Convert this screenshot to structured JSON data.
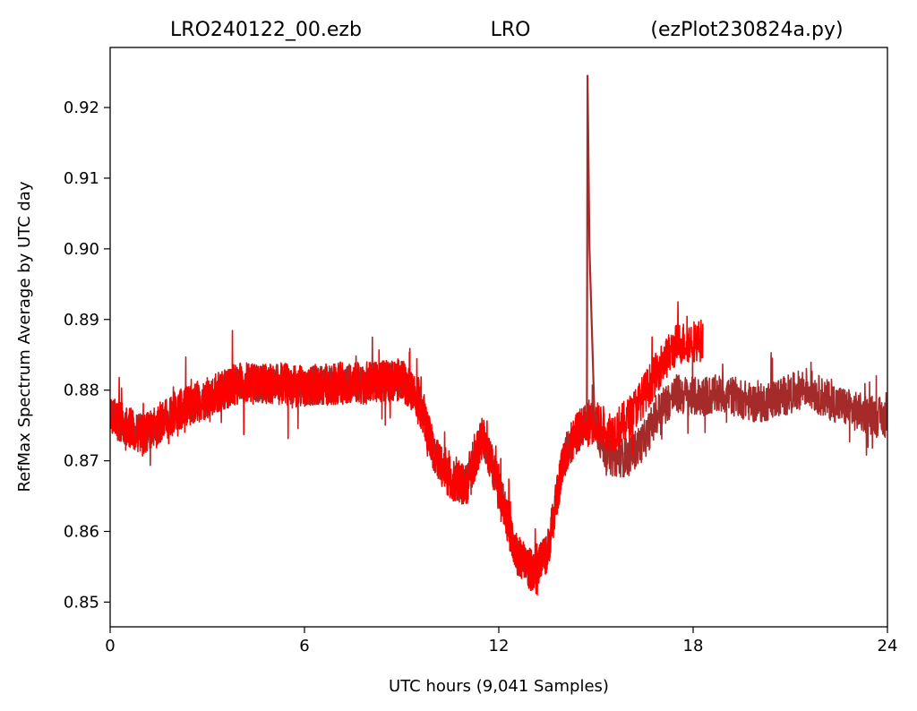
{
  "chart_data": {
    "type": "line",
    "title_left": "LRO240122_00.ezb",
    "title_center": "LRO",
    "title_right": "(ezPlot230824a.py)",
    "xlabel": "UTC hours  (9,041 Samples)",
    "ylabel": "RefMax Spectrum Average by UTC day",
    "xlim": [
      0,
      24
    ],
    "ylim": [
      0.8465,
      0.9285
    ],
    "xticks": [
      0,
      6,
      12,
      18,
      24
    ],
    "xtick_labels": [
      "0",
      "6",
      "12",
      "18",
      "24"
    ],
    "yticks": [
      0.85,
      0.86,
      0.87,
      0.88,
      0.89,
      0.9,
      0.91,
      0.92
    ],
    "ytick_labels": [
      "0.85",
      "0.86",
      "0.87",
      "0.88",
      "0.89",
      "0.90",
      "0.91",
      "0.92"
    ],
    "grid": false,
    "series": [
      {
        "color": "#a52a2a",
        "noise": 0.0028,
        "x": [
          0,
          1,
          2,
          3,
          4,
          5,
          6,
          7,
          8,
          9,
          9.5,
          10,
          10.5,
          11,
          11.5,
          12,
          12.5,
          13,
          13.5,
          14,
          14.5,
          14.8,
          15,
          15.2,
          15.5,
          16,
          16.5,
          17,
          17.5,
          18,
          19,
          20,
          21,
          21.5,
          22,
          23,
          24
        ],
        "y": [
          0.8765,
          0.8735,
          0.877,
          0.879,
          0.881,
          0.881,
          0.8805,
          0.881,
          0.881,
          0.8815,
          0.879,
          0.871,
          0.8675,
          0.8665,
          0.8735,
          0.8665,
          0.857,
          0.8545,
          0.857,
          0.8705,
          0.8745,
          0.876,
          0.875,
          0.872,
          0.8705,
          0.8705,
          0.873,
          0.8775,
          0.8795,
          0.879,
          0.8795,
          0.878,
          0.8795,
          0.8805,
          0.879,
          0.877,
          0.876
        ]
      },
      {
        "color": "#ff0000",
        "noise": 0.003,
        "x": [
          0,
          1,
          2,
          3,
          4,
          5,
          6,
          7,
          8,
          9,
          9.5,
          10,
          10.5,
          11,
          11.5,
          12,
          12.5,
          13,
          13.5,
          14,
          14.5,
          15,
          15.5,
          16,
          16.5,
          17,
          17.5,
          18,
          18.3
        ],
        "y": [
          0.8765,
          0.8735,
          0.877,
          0.879,
          0.881,
          0.881,
          0.8805,
          0.881,
          0.881,
          0.8815,
          0.879,
          0.871,
          0.8675,
          0.8665,
          0.8735,
          0.8665,
          0.857,
          0.8545,
          0.857,
          0.8705,
          0.8745,
          0.8755,
          0.874,
          0.876,
          0.8795,
          0.8835,
          0.8865,
          0.887,
          0.887
        ]
      },
      {
        "color": "#a52a2a",
        "noise": 0,
        "x": [
          14.6,
          14.72,
          14.74,
          14.8,
          14.95,
          15.05
        ],
        "y": [
          0.8755,
          0.876,
          0.9245,
          0.9,
          0.877,
          0.8755
        ]
      }
    ]
  }
}
